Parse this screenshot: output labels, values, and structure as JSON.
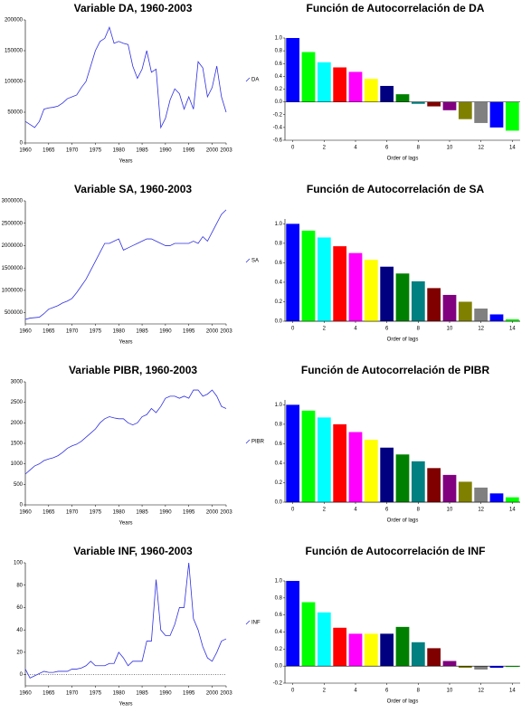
{
  "chart_data": [
    {
      "type": "line",
      "title": "Variable DA, 1960-2003",
      "xlabel": "Years",
      "xlim": [
        1960,
        2003
      ],
      "xticks": [
        1960,
        1965,
        1970,
        1975,
        1980,
        1985,
        1990,
        1995,
        2000,
        2003
      ],
      "ylim": [
        0,
        200000
      ],
      "yticks": [
        0,
        50000,
        100000,
        150000,
        200000
      ],
      "zero_line": false,
      "x": [
        1960,
        1961,
        1962,
        1963,
        1964,
        1965,
        1966,
        1967,
        1968,
        1969,
        1970,
        1971,
        1972,
        1973,
        1974,
        1975,
        1976,
        1977,
        1978,
        1979,
        1980,
        1981,
        1982,
        1983,
        1984,
        1985,
        1986,
        1987,
        1988,
        1989,
        1990,
        1991,
        1992,
        1993,
        1994,
        1995,
        1996,
        1997,
        1998,
        1999,
        2000,
        2001,
        2002,
        2003
      ],
      "series": [
        {
          "name": "DA",
          "color": "#3030e0",
          "values": [
            35000,
            30000,
            25000,
            35000,
            55000,
            57000,
            58000,
            60000,
            65000,
            72000,
            75000,
            78000,
            90000,
            100000,
            125000,
            150000,
            165000,
            170000,
            188000,
            162000,
            165000,
            162000,
            160000,
            125000,
            105000,
            120000,
            150000,
            115000,
            120000,
            25000,
            40000,
            70000,
            88000,
            80000,
            55000,
            75000,
            55000,
            132000,
            122000,
            75000,
            90000,
            125000,
            75000,
            50000
          ]
        }
      ]
    },
    {
      "type": "bar",
      "title": "Función de Autocorrelación de DA",
      "xlabel": "Order of lags",
      "xlim": [
        -0.5,
        14.5
      ],
      "xticks": [
        0,
        2,
        4,
        6,
        8,
        10,
        12,
        14
      ],
      "ylim": [
        -0.6,
        1.0
      ],
      "yticks": [
        {
          "value": 1,
          "label": "1.0"
        },
        0.8,
        0.6,
        0.4,
        0.2,
        {
          "value": 0,
          "label": "0.0"
        },
        -0.2,
        -0.4,
        -0.6
      ],
      "x": [
        0,
        1,
        2,
        3,
        4,
        5,
        6,
        7,
        8,
        9,
        10,
        11,
        12,
        13,
        14
      ],
      "values": [
        1.0,
        0.78,
        0.62,
        0.54,
        0.47,
        0.36,
        0.25,
        0.12,
        -0.03,
        -0.07,
        -0.13,
        -0.27,
        -0.33,
        -0.4,
        -0.45
      ],
      "colors": [
        "#0000ff",
        "#00ff00",
        "#00ffff",
        "#ff0000",
        "#ff00ff",
        "#ffff00",
        "#000080",
        "#008000",
        "#008080",
        "#800000",
        "#800080",
        "#808000",
        "#808080",
        "#0000ff",
        "#00ff00"
      ]
    },
    {
      "type": "line",
      "title": "Variable SA, 1960-2003",
      "xlabel": "Years",
      "xlim": [
        1960,
        2003
      ],
      "xticks": [
        1960,
        1965,
        1970,
        1975,
        1980,
        1985,
        1990,
        1995,
        2000,
        2003
      ],
      "ylim": [
        250000,
        3000000
      ],
      "yticks": [
        500000,
        1000000,
        1500000,
        2000000,
        2500000,
        3000000
      ],
      "zero_line": false,
      "x": [
        1960,
        1961,
        1962,
        1963,
        1964,
        1965,
        1966,
        1967,
        1968,
        1969,
        1970,
        1971,
        1972,
        1973,
        1974,
        1975,
        1976,
        1977,
        1978,
        1979,
        1980,
        1981,
        1982,
        1983,
        1984,
        1985,
        1986,
        1987,
        1988,
        1989,
        1990,
        1991,
        1992,
        1993,
        1994,
        1995,
        1996,
        1997,
        1998,
        1999,
        2000,
        2001,
        2002,
        2003
      ],
      "series": [
        {
          "name": "SA",
          "color": "#3030e0",
          "values": [
            350000,
            380000,
            390000,
            400000,
            480000,
            580000,
            620000,
            660000,
            720000,
            760000,
            820000,
            950000,
            1100000,
            1250000,
            1450000,
            1650000,
            1850000,
            2050000,
            2050000,
            2100000,
            2150000,
            1900000,
            1950000,
            2000000,
            2050000,
            2100000,
            2150000,
            2150000,
            2100000,
            2050000,
            2000000,
            2000000,
            2050000,
            2050000,
            2050000,
            2050000,
            2100000,
            2050000,
            2200000,
            2100000,
            2300000,
            2500000,
            2700000,
            2800000
          ]
        }
      ]
    },
    {
      "type": "bar",
      "title": "Función de Autocorrelación de SA",
      "xlabel": "Order of lags",
      "xlim": [
        -0.5,
        14.5
      ],
      "xticks": [
        0,
        2,
        4,
        6,
        8,
        10,
        12,
        14
      ],
      "ylim": [
        0,
        1.05
      ],
      "yticks": [
        {
          "value": 0,
          "label": "0.0"
        },
        0.2,
        0.4,
        0.6,
        0.8,
        {
          "value": 1,
          "label": "1.0"
        }
      ],
      "x": [
        0,
        1,
        2,
        3,
        4,
        5,
        6,
        7,
        8,
        9,
        10,
        11,
        12,
        13,
        14
      ],
      "values": [
        1.0,
        0.93,
        0.86,
        0.77,
        0.7,
        0.63,
        0.56,
        0.49,
        0.41,
        0.34,
        0.27,
        0.2,
        0.13,
        0.07,
        0.02
      ],
      "colors": [
        "#0000ff",
        "#00ff00",
        "#00ffff",
        "#ff0000",
        "#ff00ff",
        "#ffff00",
        "#000080",
        "#008000",
        "#008080",
        "#800000",
        "#800080",
        "#808000",
        "#808080",
        "#0000ff",
        "#00ff00"
      ]
    },
    {
      "type": "line",
      "title": "Variable PIBR, 1960-2003",
      "xlabel": "Years",
      "xlim": [
        1960,
        2003
      ],
      "xticks": [
        1960,
        1965,
        1970,
        1975,
        1980,
        1985,
        1990,
        1995,
        2000,
        2003
      ],
      "ylim": [
        0,
        3000
      ],
      "yticks": [
        0,
        500,
        1000,
        1500,
        2000,
        2500,
        3000
      ],
      "zero_line": false,
      "x": [
        1960,
        1961,
        1962,
        1963,
        1964,
        1965,
        1966,
        1967,
        1968,
        1969,
        1970,
        1971,
        1972,
        1973,
        1974,
        1975,
        1976,
        1977,
        1978,
        1979,
        1980,
        1981,
        1982,
        1983,
        1984,
        1985,
        1986,
        1987,
        1988,
        1989,
        1990,
        1991,
        1992,
        1993,
        1994,
        1995,
        1996,
        1997,
        1998,
        1999,
        2000,
        2001,
        2002,
        2003
      ],
      "series": [
        {
          "name": "PIBR",
          "color": "#3030e0",
          "values": [
            750,
            850,
            950,
            1000,
            1080,
            1120,
            1150,
            1200,
            1280,
            1380,
            1440,
            1480,
            1550,
            1650,
            1750,
            1850,
            2000,
            2100,
            2150,
            2120,
            2100,
            2100,
            2000,
            1950,
            2000,
            2150,
            2200,
            2350,
            2250,
            2400,
            2600,
            2650,
            2650,
            2600,
            2650,
            2600,
            2800,
            2800,
            2650,
            2700,
            2800,
            2650,
            2400,
            2350
          ]
        }
      ]
    },
    {
      "type": "bar",
      "title": "Función de Autocorrelación de PIBR",
      "xlabel": "Order of lags",
      "xlim": [
        -0.5,
        14.5
      ],
      "xticks": [
        0,
        2,
        4,
        6,
        8,
        10,
        12,
        14
      ],
      "ylim": [
        0,
        1.05
      ],
      "yticks": [
        {
          "value": 0,
          "label": "0.0"
        },
        0.2,
        0.4,
        0.6,
        0.8,
        {
          "value": 1,
          "label": "1.0"
        }
      ],
      "x": [
        0,
        1,
        2,
        3,
        4,
        5,
        6,
        7,
        8,
        9,
        10,
        11,
        12,
        13,
        14
      ],
      "values": [
        1.0,
        0.94,
        0.87,
        0.8,
        0.72,
        0.64,
        0.56,
        0.49,
        0.42,
        0.35,
        0.28,
        0.21,
        0.15,
        0.09,
        0.05
      ],
      "colors": [
        "#0000ff",
        "#00ff00",
        "#00ffff",
        "#ff0000",
        "#ff00ff",
        "#ffff00",
        "#000080",
        "#008000",
        "#008080",
        "#800000",
        "#800080",
        "#808000",
        "#808080",
        "#0000ff",
        "#00ff00"
      ]
    },
    {
      "type": "line",
      "title": "Variable INF, 1960-2003",
      "xlabel": "Years",
      "xlim": [
        1960,
        2003
      ],
      "xticks": [
        1960,
        1965,
        1970,
        1975,
        1980,
        1985,
        1990,
        1995,
        2000,
        2003
      ],
      "ylim": [
        -10,
        100
      ],
      "yticks": [
        0,
        20,
        40,
        60,
        80,
        100
      ],
      "zero_line": true,
      "x": [
        1960,
        1961,
        1962,
        1963,
        1964,
        1965,
        1966,
        1967,
        1968,
        1969,
        1970,
        1971,
        1972,
        1973,
        1974,
        1975,
        1976,
        1977,
        1978,
        1979,
        1980,
        1981,
        1982,
        1983,
        1984,
        1985,
        1986,
        1987,
        1988,
        1989,
        1990,
        1991,
        1992,
        1993,
        1994,
        1995,
        1996,
        1997,
        1998,
        1999,
        2000,
        2001,
        2002,
        2003
      ],
      "series": [
        {
          "name": "INF",
          "color": "#3030e0",
          "values": [
            5,
            -3,
            -1,
            1,
            3,
            2,
            2,
            3,
            3,
            3,
            5,
            5,
            6,
            8,
            12,
            8,
            8,
            8,
            10,
            10,
            20,
            15,
            8,
            12,
            12,
            12,
            30,
            30,
            85,
            40,
            35,
            35,
            45,
            60,
            60,
            100,
            50,
            40,
            25,
            15,
            12,
            20,
            30,
            32
          ]
        }
      ]
    },
    {
      "type": "bar",
      "title": "Función de Autocorrelación de INF",
      "xlabel": "Order of lags",
      "xlim": [
        -0.5,
        14.5
      ],
      "xticks": [
        0,
        2,
        4,
        6,
        8,
        10,
        12,
        14
      ],
      "ylim": [
        -0.2,
        1.0
      ],
      "yticks": [
        {
          "value": 1,
          "label": "1.0"
        },
        0.8,
        0.6,
        0.4,
        0.2,
        {
          "value": 0,
          "label": "0.0"
        },
        -0.2
      ],
      "x": [
        0,
        1,
        2,
        3,
        4,
        5,
        6,
        7,
        8,
        9,
        10,
        11,
        12,
        13,
        14
      ],
      "values": [
        1.0,
        0.75,
        0.63,
        0.45,
        0.38,
        0.38,
        0.38,
        0.46,
        0.28,
        0.21,
        0.06,
        -0.02,
        -0.04,
        -0.02,
        -0.01
      ],
      "colors": [
        "#0000ff",
        "#00ff00",
        "#00ffff",
        "#ff0000",
        "#ff00ff",
        "#ffff00",
        "#000080",
        "#008000",
        "#008080",
        "#800000",
        "#800080",
        "#808000",
        "#808080",
        "#0000ff",
        "#00ff00"
      ]
    }
  ]
}
